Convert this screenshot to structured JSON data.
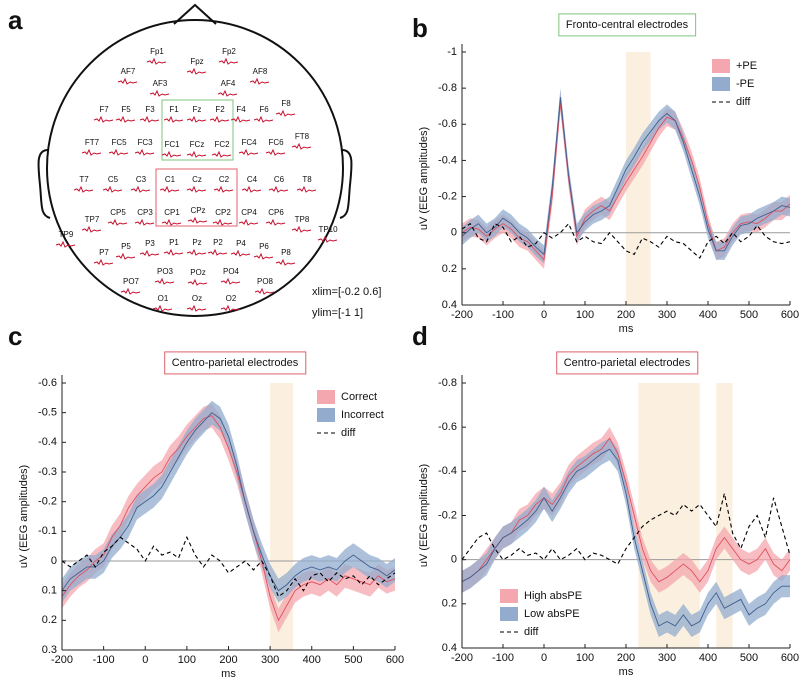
{
  "chart_data": [
    {
      "type": "topomap",
      "label": "a",
      "rows": [
        [
          "Fp1",
          "Fpz",
          "Fp2"
        ],
        [
          "AF7",
          "AF3",
          "AF4",
          "AF8"
        ],
        [
          "F7",
          "F5",
          "F3",
          "F1",
          "Fz",
          "F2",
          "F4",
          "F6",
          "F8"
        ],
        [
          "FT7",
          "FC5",
          "FC3",
          "FC1",
          "FCz",
          "FC2",
          "FC4",
          "FC6",
          "FT8"
        ],
        [
          "T7",
          "C5",
          "C3",
          "C1",
          "Cz",
          "C2",
          "C4",
          "C6",
          "T8"
        ],
        [
          "TP9",
          "TP7",
          "CP5",
          "CP3",
          "CP1",
          "CPz",
          "CP2",
          "CP4",
          "CP6",
          "TP8",
          "TP10"
        ],
        [
          "P7",
          "P5",
          "P3",
          "P1",
          "Pz",
          "P2",
          "P4",
          "P6",
          "P8"
        ],
        [
          "PO7",
          "PO3",
          "POz",
          "PO4",
          "PO8"
        ],
        [
          "O1",
          "Oz",
          "O2"
        ]
      ],
      "annotations": [
        "xlim=[-0.2 0.6]",
        "ylim=[-1 1]"
      ]
    },
    {
      "type": "line",
      "label": "b",
      "title": "Fronto-central electrodes",
      "title_border": "#7cc47c",
      "xlabel": "ms",
      "ylabel": "uV (EEG amplitudes)",
      "xlim": [
        -200,
        600
      ],
      "xticks": [
        -200,
        -100,
        0,
        100,
        200,
        300,
        400,
        500,
        600
      ],
      "ylim": [
        0.4,
        -1
      ],
      "yticks": [
        0.4,
        0.2,
        0,
        -0.2,
        -0.4,
        -0.6,
        -0.8,
        -1
      ],
      "highlights": [
        [
          200,
          260
        ]
      ],
      "highlight_color": "#fbf0e0",
      "legend": "upper right",
      "x": [
        -200,
        -180,
        -160,
        -140,
        -120,
        -100,
        -80,
        -60,
        -40,
        -20,
        0,
        20,
        40,
        60,
        80,
        100,
        120,
        140,
        160,
        180,
        200,
        220,
        240,
        260,
        280,
        300,
        320,
        340,
        360,
        380,
        400,
        420,
        440,
        460,
        480,
        500,
        520,
        540,
        560,
        580,
        600
      ],
      "series": [
        {
          "name": "+PE",
          "color": "#e0505e",
          "band_color": "#f4a7ae",
          "band": 0.05,
          "values": [
            0.0,
            -0.03,
            -0.02,
            0.02,
            -0.02,
            -0.05,
            -0.02,
            0.03,
            0.05,
            0.1,
            0.15,
            -0.2,
            -0.72,
            -0.3,
            0.02,
            -0.08,
            -0.12,
            -0.15,
            -0.12,
            -0.2,
            -0.28,
            -0.35,
            -0.42,
            -0.5,
            -0.58,
            -0.64,
            -0.62,
            -0.52,
            -0.4,
            -0.25,
            -0.05,
            0.1,
            0.08,
            0.0,
            -0.05,
            -0.06,
            -0.05,
            -0.08,
            -0.12,
            -0.12,
            -0.16
          ]
        },
        {
          "name": "-PE",
          "color": "#3f5f8f",
          "band_color": "#93acce",
          "band": 0.05,
          "values": [
            0.02,
            -0.02,
            -0.05,
            0.0,
            -0.03,
            -0.08,
            -0.05,
            0.0,
            0.03,
            0.08,
            0.12,
            -0.25,
            -0.75,
            -0.32,
            0.0,
            -0.06,
            -0.1,
            -0.12,
            -0.15,
            -0.25,
            -0.35,
            -0.42,
            -0.5,
            -0.56,
            -0.62,
            -0.66,
            -0.62,
            -0.5,
            -0.35,
            -0.2,
            -0.02,
            0.1,
            0.1,
            0.02,
            -0.04,
            -0.05,
            -0.08,
            -0.1,
            -0.12,
            -0.15,
            -0.14
          ]
        },
        {
          "name": "diff",
          "color": "#000000",
          "dashed": true,
          "values": [
            -0.02,
            -0.05,
            0.03,
            0.05,
            -0.05,
            -0.03,
            0.05,
            0.02,
            0.08,
            0.06,
            0.0,
            0.03,
            0.0,
            -0.05,
            0.05,
            0.02,
            0.05,
            0.06,
            0.0,
            0.05,
            0.1,
            0.12,
            0.03,
            0.05,
            0.08,
            0.02,
            0.05,
            0.06,
            0.1,
            0.14,
            0.05,
            0.02,
            0.06,
            0.0,
            0.05,
            0.02,
            -0.04,
            0.02,
            0.05,
            0.06,
            0.05
          ]
        }
      ]
    },
    {
      "type": "line",
      "label": "c",
      "title": "Centro-parietal electrodes",
      "title_border": "#e0606c",
      "xlabel": "ms",
      "ylabel": "uV (EEG amplitudes)",
      "xlim": [
        -200,
        600
      ],
      "xticks": [
        -200,
        -100,
        0,
        100,
        200,
        300,
        400,
        500,
        600
      ],
      "ylim": [
        0.3,
        -0.6
      ],
      "yticks": [
        0.3,
        0.2,
        0.1,
        0,
        -0.1,
        -0.2,
        -0.3,
        -0.4,
        -0.5,
        -0.6
      ],
      "highlights": [
        [
          300,
          355
        ]
      ],
      "highlight_color": "#fbf0e0",
      "legend": "upper right",
      "x": [
        -200,
        -180,
        -160,
        -140,
        -120,
        -100,
        -80,
        -60,
        -40,
        -20,
        0,
        20,
        40,
        60,
        80,
        100,
        120,
        140,
        160,
        180,
        200,
        220,
        240,
        260,
        280,
        300,
        320,
        340,
        360,
        380,
        400,
        420,
        440,
        460,
        480,
        500,
        520,
        540,
        560,
        580,
        600
      ],
      "series": [
        {
          "name": "Correct",
          "color": "#e0505e",
          "band_color": "#f4a7ae",
          "band": 0.04,
          "values": [
            0.12,
            0.08,
            0.05,
            0.03,
            0.0,
            -0.02,
            -0.08,
            -0.12,
            -0.18,
            -0.22,
            -0.25,
            -0.28,
            -0.3,
            -0.35,
            -0.38,
            -0.42,
            -0.45,
            -0.48,
            -0.49,
            -0.45,
            -0.38,
            -0.3,
            -0.2,
            -0.1,
            0.0,
            0.12,
            0.2,
            0.15,
            0.1,
            0.08,
            0.07,
            0.08,
            0.06,
            0.08,
            0.05,
            0.06,
            0.07,
            0.08,
            0.05,
            0.07,
            0.06
          ]
        },
        {
          "name": "Incorrect",
          "color": "#3f5f8f",
          "band_color": "#93acce",
          "band": 0.04,
          "values": [
            0.1,
            0.06,
            0.04,
            0.02,
            0.02,
            0.0,
            -0.05,
            -0.08,
            -0.12,
            -0.18,
            -0.2,
            -0.22,
            -0.25,
            -0.3,
            -0.35,
            -0.4,
            -0.44,
            -0.47,
            -0.5,
            -0.48,
            -0.42,
            -0.32,
            -0.2,
            -0.1,
            -0.02,
            0.05,
            0.1,
            0.08,
            0.05,
            0.03,
            0.02,
            0.03,
            0.02,
            0.03,
            0.0,
            -0.02,
            0.0,
            0.02,
            0.03,
            0.05,
            0.03
          ]
        },
        {
          "name": " diff",
          "color": "#000000",
          "dashed": true,
          "values": [
            0.0,
            0.02,
            0.0,
            -0.02,
            0.02,
            -0.03,
            -0.05,
            -0.08,
            -0.06,
            -0.04,
            0.0,
            -0.05,
            -0.02,
            -0.03,
            -0.01,
            -0.08,
            -0.02,
            0.02,
            -0.02,
            0.0,
            0.04,
            0.02,
            0.0,
            0.03,
            0.0,
            0.05,
            0.12,
            0.1,
            0.06,
            0.1,
            0.05,
            0.04,
            0.07,
            0.04,
            0.06,
            0.05,
            0.08,
            0.05,
            0.08,
            0.06,
            0.04
          ]
        }
      ]
    },
    {
      "type": "line",
      "label": "d",
      "title": "Centro-parietal electrodes",
      "title_border": "#e0606c",
      "xlabel": "ms",
      "ylabel": "uV (EEG amplitudes)",
      "xlim": [
        -200,
        600
      ],
      "xticks": [
        -200,
        -100,
        0,
        100,
        200,
        300,
        400,
        500,
        600
      ],
      "ylim": [
        0.4,
        -0.8
      ],
      "yticks": [
        0.4,
        0.2,
        0,
        -0.2,
        -0.4,
        -0.6,
        -0.8
      ],
      "highlights": [
        [
          230,
          380
        ],
        [
          420,
          460
        ]
      ],
      "highlight_color": "#fbf0e0",
      "legend": "lower left",
      "x": [
        -200,
        -180,
        -160,
        -140,
        -120,
        -100,
        -80,
        -60,
        -40,
        -20,
        0,
        20,
        40,
        60,
        80,
        100,
        120,
        140,
        160,
        180,
        200,
        220,
        240,
        260,
        280,
        300,
        320,
        340,
        360,
        380,
        400,
        420,
        440,
        460,
        480,
        500,
        520,
        540,
        560,
        580,
        600
      ],
      "series": [
        {
          "name": "High absPE",
          "color": "#e0505e",
          "band_color": "#f4a7ae",
          "band": 0.05,
          "values": [
            0.1,
            0.08,
            0.05,
            0.0,
            -0.05,
            -0.1,
            -0.12,
            -0.18,
            -0.2,
            -0.25,
            -0.28,
            -0.25,
            -0.3,
            -0.38,
            -0.42,
            -0.45,
            -0.48,
            -0.5,
            -0.55,
            -0.48,
            -0.35,
            -0.2,
            -0.05,
            0.05,
            0.1,
            0.08,
            0.05,
            0.02,
            0.05,
            0.1,
            0.05,
            -0.05,
            -0.1,
            -0.05,
            0.0,
            0.02,
            0.0,
            -0.05,
            0.02,
            0.05,
            0.0
          ]
        },
        {
          "name": "Low absPE",
          "color": "#3f5f8f",
          "band_color": "#93acce",
          "band": 0.05,
          "values": [
            0.1,
            0.08,
            0.05,
            0.02,
            -0.05,
            -0.1,
            -0.12,
            -0.15,
            -0.18,
            -0.22,
            -0.28,
            -0.22,
            -0.28,
            -0.35,
            -0.4,
            -0.42,
            -0.45,
            -0.48,
            -0.5,
            -0.45,
            -0.3,
            -0.1,
            0.05,
            0.2,
            0.3,
            0.28,
            0.3,
            0.25,
            0.3,
            0.28,
            0.2,
            0.15,
            0.22,
            0.2,
            0.18,
            0.25,
            0.22,
            0.2,
            0.15,
            0.12,
            0.12
          ]
        },
        {
          "name": "diff",
          "color": "#000000",
          "dashed": true,
          "values": [
            0.0,
            -0.05,
            -0.1,
            -0.12,
            -0.05,
            0.0,
            -0.02,
            -0.05,
            -0.02,
            -0.03,
            0.0,
            -0.05,
            0.0,
            -0.02,
            -0.05,
            0.0,
            -0.03,
            -0.02,
            0.0,
            0.02,
            -0.05,
            -0.1,
            -0.15,
            -0.18,
            -0.2,
            -0.22,
            -0.2,
            -0.25,
            -0.22,
            -0.25,
            -0.2,
            -0.15,
            -0.3,
            -0.12,
            -0.05,
            -0.15,
            -0.2,
            -0.1,
            -0.28,
            -0.15,
            -0.02
          ]
        }
      ]
    }
  ]
}
